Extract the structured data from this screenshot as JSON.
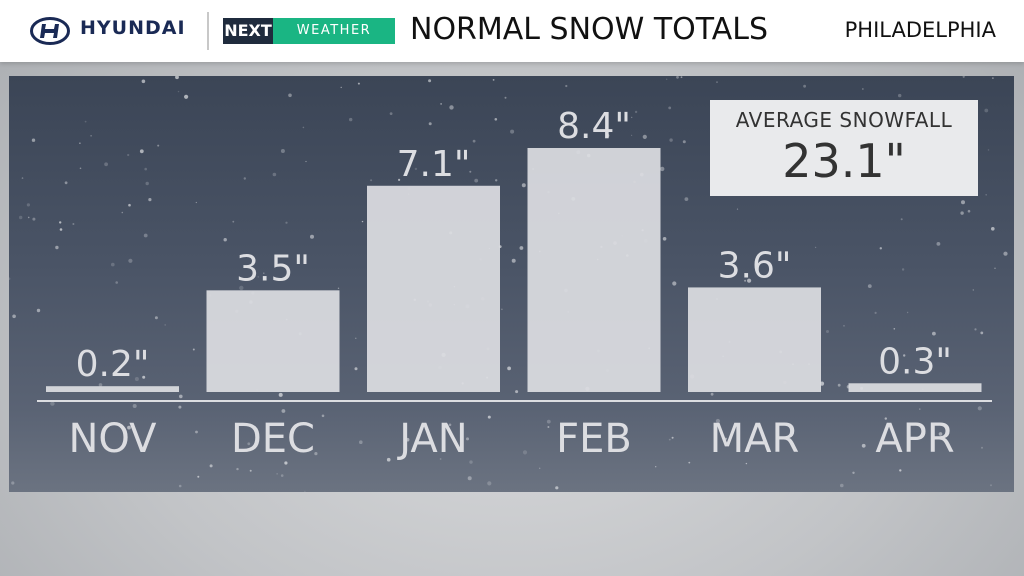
{
  "header": {
    "brand": "HYUNDAI",
    "next_label": "NEXT",
    "weather_label": "WEATHER",
    "title": "NORMAL SNOW TOTALS",
    "location": "PHILADELPHIA"
  },
  "summary": {
    "label": "AVERAGE SNOWFALL",
    "value": "23.1\""
  },
  "colors": {
    "bar": "#dcdde1",
    "panel": "#4a5466",
    "weather_green": "#1ab583",
    "next_dark": "#1f2b3d"
  },
  "chart_data": {
    "type": "bar",
    "categories": [
      "NOV",
      "DEC",
      "JAN",
      "FEB",
      "MAR",
      "APR"
    ],
    "values": [
      0.2,
      3.5,
      7.1,
      8.4,
      3.6,
      0.3
    ],
    "value_labels": [
      "0.2\"",
      "3.5\"",
      "7.1\"",
      "8.4\"",
      "3.6\"",
      "0.3\""
    ],
    "ylim": [
      0,
      8.4
    ],
    "grid": false
  }
}
